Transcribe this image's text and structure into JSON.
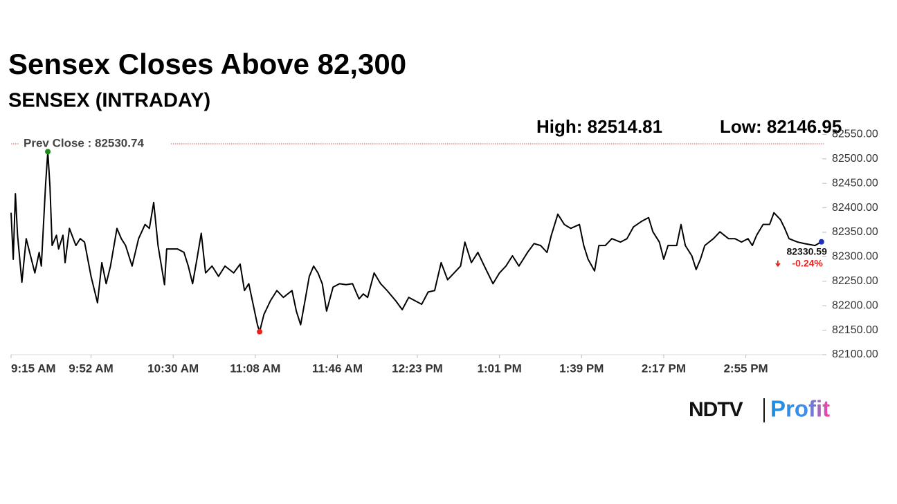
{
  "chart_data": {
    "type": "line",
    "title": "Sensex Closes Above 82,300",
    "subtitle": "SENSEX (INTRADAY)",
    "high_label": "High: 82514.81",
    "low_label": "Low: 82146.95",
    "reference_line": {
      "value": 82530.74,
      "label": "Prev Close : 82530.74",
      "color": "#d9534f"
    },
    "last": {
      "value": 82330.59,
      "change": {
        "value": -0.24,
        "label": "-0.24%"
      }
    },
    "series": [
      {
        "name": "SENSEX",
        "color": "#000000",
        "x": [
          555,
          556,
          557,
          558,
          560,
          562,
          564,
          566,
          568,
          569,
          571,
          572,
          573,
          574,
          576,
          577,
          579,
          580,
          582,
          585,
          587,
          589,
          592,
          595,
          597,
          599,
          601,
          604,
          606,
          608,
          611,
          614,
          617,
          619,
          621,
          623,
          626,
          627,
          632,
          635,
          637,
          639,
          641,
          643,
          645,
          648,
          651,
          654,
          658,
          661,
          663,
          665,
          667,
          669,
          670,
          672,
          675,
          678,
          681,
          685,
          687,
          689,
          691,
          693,
          695,
          697,
          699,
          701,
          704,
          707,
          710,
          713,
          716,
          718,
          720,
          723,
          726,
          729,
          733,
          736,
          739,
          742,
          745,
          748,
          751,
          754,
          757,
          760,
          763,
          765,
          768,
          771,
          774,
          778,
          781,
          784,
          787,
          790,
          794,
          797,
          800,
          803,
          805,
          808,
          811,
          814,
          818,
          820,
          822,
          825,
          827,
          830,
          833,
          837,
          840,
          843,
          847,
          850,
          852,
          855,
          857,
          859,
          863,
          865,
          867,
          870,
          872,
          874,
          876,
          880,
          883,
          887,
          890,
          893,
          896,
          898,
          900,
          903,
          906,
          908,
          911,
          913,
          915,
          919,
          922,
          927,
          930
        ],
        "values": [
          82390,
          82295,
          82429,
          82344,
          82248,
          82337,
          82302,
          82267,
          82309,
          82281,
          82450,
          82514.81,
          82443,
          82323,
          82344,
          82316,
          82344,
          82288,
          82358,
          82323,
          82337,
          82330,
          82260,
          82206,
          82288,
          82245,
          82281,
          82358,
          82337,
          82323,
          82281,
          82337,
          82366,
          82358,
          82411,
          82323,
          82243,
          82316,
          82316,
          82309,
          82281,
          82245,
          82295,
          82348,
          82267,
          82281,
          82260,
          82281,
          82267,
          82285,
          82231,
          82245,
          82203,
          82161,
          82146.95,
          82182,
          82210,
          82231,
          82217,
          82231,
          82189,
          82161,
          82210,
          82260,
          82281,
          82267,
          82245,
          82189,
          82238,
          82245,
          82243,
          82245,
          82214,
          82224,
          82217,
          82267,
          82245,
          82231,
          82210,
          82192,
          82217,
          82210,
          82203,
          82228,
          82231,
          82288,
          82253,
          82267,
          82281,
          82330,
          82288,
          82309,
          82281,
          82245,
          82267,
          82281,
          82302,
          82281,
          82309,
          82327,
          82323,
          82309,
          82344,
          82387,
          82366,
          82358,
          82366,
          82323,
          82295,
          82271,
          82323,
          82323,
          82337,
          82330,
          82337,
          82361,
          82373,
          82380,
          82351,
          82330,
          82295,
          82323,
          82323,
          82366,
          82323,
          82302,
          82274,
          82295,
          82323,
          82337,
          82351,
          82337,
          82337,
          82330,
          82337,
          82323,
          82344,
          82366,
          82366,
          82390,
          82376,
          82358,
          82337,
          82330,
          82327,
          82323,
          82330.59
        ]
      }
    ],
    "xlim": [
      555,
      931
    ],
    "xticks": [
      {
        "value": 555,
        "label": "9:15 AM"
      },
      {
        "value": 592,
        "label": "9:52 AM"
      },
      {
        "value": 630,
        "label": "10:30 AM"
      },
      {
        "value": 668,
        "label": "11:08 AM"
      },
      {
        "value": 706,
        "label": "11:46 AM"
      },
      {
        "value": 743,
        "label": "12:23 PM"
      },
      {
        "value": 781,
        "label": "1:01 PM"
      },
      {
        "value": 819,
        "label": "1:39 PM"
      },
      {
        "value": 857,
        "label": "2:17 PM"
      },
      {
        "value": 895,
        "label": "2:55 PM"
      }
    ],
    "ylim": [
      82100,
      82550
    ],
    "yticks": [
      {
        "value": 82100,
        "label": "82100.00"
      },
      {
        "value": 82150,
        "label": "82150.00"
      },
      {
        "value": 82200,
        "label": "82200.00"
      },
      {
        "value": 82250,
        "label": "82250.00"
      },
      {
        "value": 82300,
        "label": "82300.00"
      },
      {
        "value": 82350,
        "label": "82350.00"
      },
      {
        "value": 82400,
        "label": "82400.00"
      },
      {
        "value": 82450,
        "label": "82450.00"
      },
      {
        "value": 82500,
        "label": "82500.00"
      },
      {
        "value": 82550,
        "label": "82550.00"
      }
    ],
    "grid": false,
    "high_marker_color": "#1a8a1a",
    "low_marker_color": "#e8231e",
    "last_marker_color": "#1f2fc0",
    "change_color": "#e8231e",
    "logo": {
      "brand": "NDTV",
      "product": "Profit"
    }
  }
}
